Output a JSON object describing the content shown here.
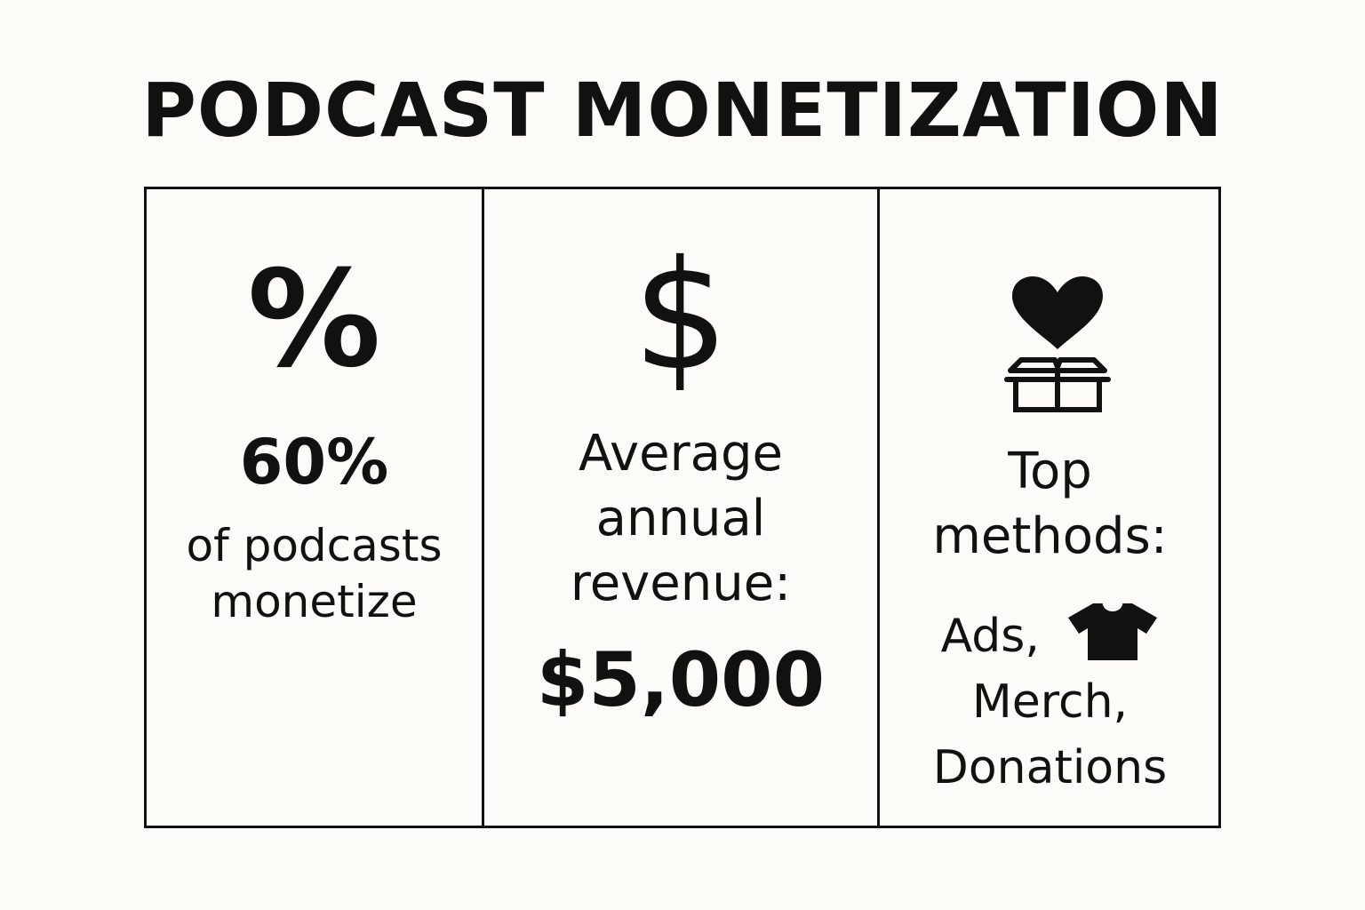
{
  "title": "PODCAST MONETIZATION",
  "panels": {
    "percent": {
      "icon": "percent-icon",
      "glyph": "%",
      "value": "60%",
      "text_line1": "of podcasts",
      "text_line2": "monetize"
    },
    "revenue": {
      "icon": "dollar-icon",
      "glyph": "$",
      "text_line1": "Average",
      "text_line2": "annual",
      "text_line3": "revenue:",
      "value": "$5,000"
    },
    "methods": {
      "icon": "heart-box-icon",
      "text_line1": "Top",
      "text_line2": "methods:",
      "items": [
        "Ads,",
        "Merch,",
        "Donations"
      ],
      "item_icon": "tshirt-icon"
    }
  }
}
